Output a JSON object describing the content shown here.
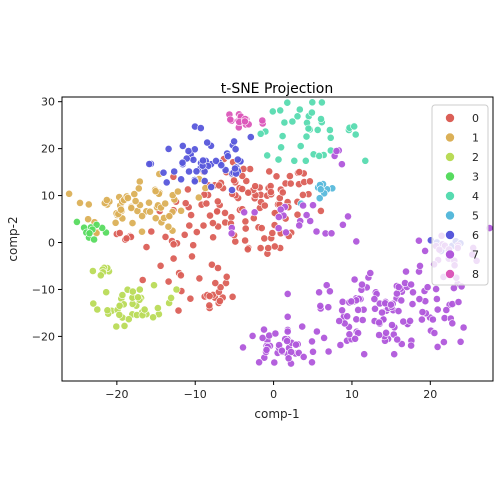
{
  "chart_data": {
    "type": "scatter",
    "title": "t-SNE Projection",
    "xlabel": "comp-1",
    "ylabel": "comp-2",
    "xlim": [
      -27,
      28
    ],
    "ylim": [
      -29.5,
      31
    ],
    "xticks": [
      -20,
      -10,
      0,
      10,
      20
    ],
    "yticks": [
      -20,
      -10,
      0,
      10,
      20,
      30
    ],
    "grid": false,
    "legend": {
      "placement": "top-right"
    },
    "series": [
      {
        "name": "0",
        "color": "#db5f57",
        "clusters": [
          {
            "cx": -3.5,
            "cy": 9,
            "sx": 4.5,
            "sy": 4,
            "n": 90
          },
          {
            "cx": -11,
            "cy": -2,
            "sx": 3,
            "sy": 4,
            "n": 22
          },
          {
            "cx": -9,
            "cy": -11,
            "sx": 2,
            "sy": 2.5,
            "n": 20
          },
          {
            "cx": -1,
            "cy": 1,
            "sx": 2.5,
            "sy": 2,
            "n": 16
          },
          {
            "cx": -18.5,
            "cy": 1,
            "sx": 1.5,
            "sy": 1,
            "n": 6
          },
          {
            "cx": 4,
            "cy": 12,
            "sx": 2,
            "sy": 1.5,
            "n": 6
          }
        ]
      },
      {
        "name": "1",
        "color": "#dbb057",
        "clusters": [
          {
            "cx": -19.5,
            "cy": 7.5,
            "sx": 3,
            "sy": 2.5,
            "n": 40
          },
          {
            "cx": -14.5,
            "cy": 8,
            "sx": 1.5,
            "sy": 3,
            "n": 18
          },
          {
            "cx": -12,
            "cy": 12,
            "sx": 1.5,
            "sy": 1.5,
            "n": 6
          }
        ]
      },
      {
        "name": "2",
        "color": "#b9db57",
        "clusters": [
          {
            "cx": -17.5,
            "cy": -13.5,
            "sx": 2.5,
            "sy": 2,
            "n": 40
          },
          {
            "cx": -22,
            "cy": -6,
            "sx": 1,
            "sy": 0.8,
            "n": 7
          }
        ]
      },
      {
        "name": "3",
        "color": "#57db5f",
        "clusters": [
          {
            "cx": -23,
            "cy": 2.5,
            "sx": 1.2,
            "sy": 1.5,
            "n": 12
          }
        ]
      },
      {
        "name": "4",
        "color": "#57dbb0",
        "clusters": [
          {
            "cx": 4,
            "cy": 24,
            "sx": 3.5,
            "sy": 3,
            "n": 40
          }
        ]
      },
      {
        "name": "5",
        "color": "#57b9db",
        "clusters": [
          {
            "cx": 6.5,
            "cy": 10.5,
            "sx": 1.5,
            "sy": 1.2,
            "n": 9
          }
        ]
      },
      {
        "name": "6",
        "color": "#5757db",
        "clusters": [
          {
            "cx": -8.5,
            "cy": 17,
            "sx": 3.5,
            "sy": 3.5,
            "n": 55
          },
          {
            "cx": 21.5,
            "cy": -1,
            "sx": 1.5,
            "sy": 1,
            "n": 8
          }
        ]
      },
      {
        "name": "7",
        "color": "#b057db",
        "clusters": [
          {
            "cx": 15,
            "cy": -15,
            "sx": 6,
            "sy": 4,
            "n": 130
          },
          {
            "cx": 0.5,
            "cy": -22.5,
            "sx": 2,
            "sy": 1.8,
            "n": 35
          },
          {
            "cx": 21.5,
            "cy": -2,
            "sx": 3,
            "sy": 2.5,
            "n": 22
          },
          {
            "cx": 3,
            "cy": 3,
            "sx": 4,
            "sy": 3,
            "n": 22
          },
          {
            "cx": 8,
            "cy": 18.5,
            "sx": 1,
            "sy": 1,
            "n": 4
          }
        ]
      },
      {
        "name": "8",
        "color": "#db57b9",
        "clusters": [
          {
            "cx": -4,
            "cy": 26,
            "sx": 1.5,
            "sy": 1.5,
            "n": 18
          }
        ]
      }
    ]
  }
}
